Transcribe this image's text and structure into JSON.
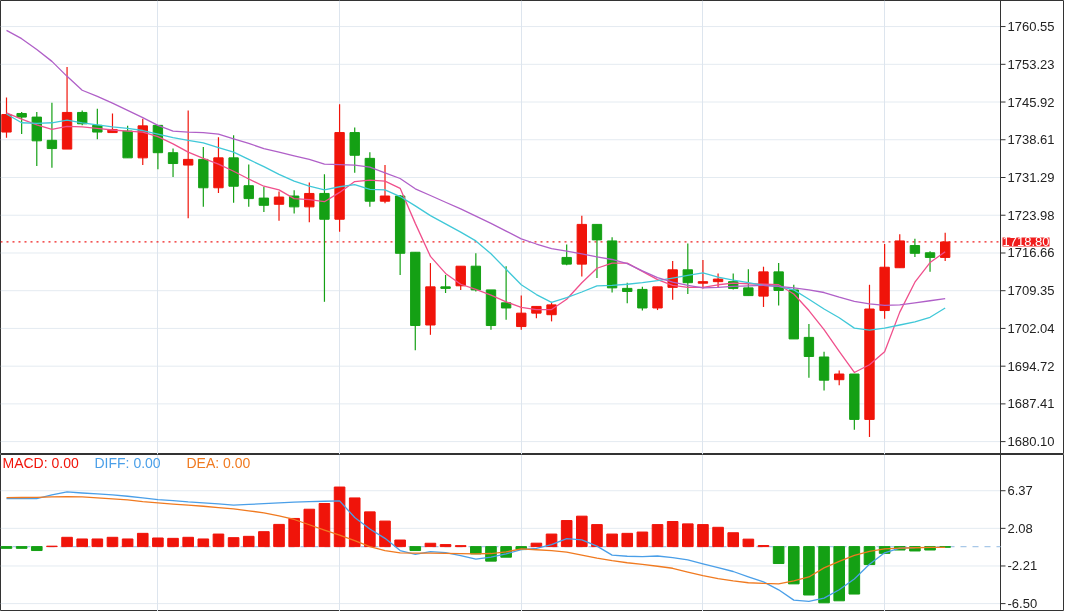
{
  "chart_data": [
    {
      "type": "candlestick",
      "categories": [
        null,
        null,
        null,
        null,
        null,
        null,
        null,
        null,
        null,
        null,
        null,
        null,
        null,
        null,
        null,
        null,
        null,
        null,
        null,
        null,
        null,
        null,
        null,
        null,
        null,
        null,
        null,
        null,
        null,
        null,
        null,
        null,
        null,
        null,
        null,
        null,
        null,
        null,
        null,
        null,
        null,
        null,
        null,
        null,
        null,
        null,
        null,
        null,
        null,
        null,
        null,
        null,
        null,
        null,
        null,
        null,
        null,
        null,
        null,
        null,
        null,
        null,
        null
      ],
      "ohlc": [
        [
          1740.1,
          1746.8,
          1739.0,
          1743.5
        ],
        [
          1743.7,
          1744.0,
          1739.7,
          1743.0
        ],
        [
          1743.0,
          1744.0,
          1733.5,
          1738.4
        ],
        [
          1738.5,
          1745.8,
          1733.2,
          1736.9
        ],
        [
          1736.8,
          1752.7,
          1736.8,
          1743.9
        ],
        [
          1743.9,
          1744.3,
          1741.4,
          1741.7
        ],
        [
          1741.4,
          1744.6,
          1738.7,
          1740.1
        ],
        [
          1740.0,
          1743.7,
          1740.0,
          1740.6
        ],
        [
          1740.3,
          1741.3,
          1735.1,
          1735.1
        ],
        [
          1735.1,
          1742.7,
          1733.7,
          1741.3
        ],
        [
          1741.4,
          1741.4,
          1732.9,
          1736.1
        ],
        [
          1736.1,
          1736.9,
          1731.4,
          1734.0
        ],
        [
          1733.7,
          1744.3,
          1723.4,
          1734.8
        ],
        [
          1734.8,
          1737.2,
          1725.6,
          1729.3
        ],
        [
          1729.3,
          1739.1,
          1728.3,
          1735.1
        ],
        [
          1735.1,
          1739.5,
          1726.4,
          1729.6
        ],
        [
          1729.7,
          1733.8,
          1725.6,
          1727.2
        ],
        [
          1727.3,
          1729.5,
          1724.6,
          1725.9
        ],
        [
          1726.1,
          1728.6,
          1722.9,
          1727.5
        ],
        [
          1727.7,
          1728.8,
          1724.3,
          1725.6
        ],
        [
          1725.6,
          1730.3,
          1722.6,
          1728.2
        ],
        [
          1728.2,
          1731.9,
          1707.2,
          1723.2
        ],
        [
          1723.2,
          1745.5,
          1720.8,
          1740.0
        ],
        [
          1740.0,
          1741.0,
          1732.2,
          1735.6
        ],
        [
          1735.0,
          1736.2,
          1725.6,
          1726.7
        ],
        [
          1726.7,
          1733.7,
          1726.3,
          1727.7
        ],
        [
          1727.7,
          1727.9,
          1712.4,
          1716.6
        ],
        [
          1716.8,
          1716.8,
          1697.8,
          1702.6
        ],
        [
          1702.7,
          1714.7,
          1700.8,
          1710.1
        ],
        [
          1710.1,
          1712.4,
          1708.9,
          1709.8
        ],
        [
          1710.3,
          1714.1,
          1709.5,
          1714.1
        ],
        [
          1714.1,
          1716.6,
          1709.2,
          1709.5
        ],
        [
          1709.5,
          1709.5,
          1701.8,
          1702.6
        ],
        [
          1707.0,
          1714.1,
          1703.7,
          1706.0
        ],
        [
          1702.4,
          1708.4,
          1701.8,
          1705.0
        ],
        [
          1705.0,
          1706.3,
          1704.0,
          1706.3
        ],
        [
          1704.7,
          1707.2,
          1703.4,
          1706.6
        ],
        [
          1715.8,
          1718.3,
          1714.3,
          1714.5
        ],
        [
          1714.5,
          1723.9,
          1712.1,
          1722.2
        ],
        [
          1722.2,
          1722.2,
          1711.8,
          1719.2
        ],
        [
          1719.0,
          1719.7,
          1709.0,
          1709.9
        ],
        [
          1709.8,
          1710.9,
          1706.9,
          1709.2
        ],
        [
          1709.6,
          1710.1,
          1705.5,
          1706.0
        ],
        [
          1706.0,
          1710.1,
          1705.6,
          1710.1
        ],
        [
          1710.0,
          1715.1,
          1707.6,
          1713.4
        ],
        [
          1713.4,
          1718.5,
          1708.7,
          1710.9
        ],
        [
          1710.8,
          1715.3,
          1709.8,
          1711.1
        ],
        [
          1711.1,
          1712.7,
          1710.0,
          1711.6
        ],
        [
          1711.1,
          1712.7,
          1709.6,
          1709.8
        ],
        [
          1709.9,
          1713.5,
          1708.4,
          1708.4
        ],
        [
          1708.3,
          1714.0,
          1706.2,
          1713.0
        ],
        [
          1713.0,
          1714.7,
          1706.5,
          1709.4
        ],
        [
          1709.5,
          1710.5,
          1700.0,
          1700.0
        ],
        [
          1700.3,
          1702.9,
          1692.5,
          1696.6
        ],
        [
          1696.5,
          1697.5,
          1690.0,
          1692.0
        ],
        [
          1692.1,
          1693.9,
          1691.0,
          1693.2
        ],
        [
          1693.2,
          1693.2,
          1682.4,
          1684.4
        ],
        [
          1684.4,
          1710.5,
          1681.0,
          1705.8
        ],
        [
          1705.5,
          1718.4,
          1703.9,
          1713.9
        ],
        [
          1713.8,
          1720.3,
          1713.8,
          1719.0
        ],
        [
          1718.1,
          1719.4,
          1715.9,
          1716.6
        ],
        [
          1716.7,
          1717.0,
          1713.0,
          1715.8
        ],
        [
          1715.8,
          1720.6,
          1715.1,
          1718.8
        ]
      ],
      "series": [
        {
          "type": "line",
          "color": "#f0508c",
          "values": [
            1743.8,
            1742.6,
            1741.5,
            1740.6,
            1741.2,
            1741.1,
            1740.8,
            1740.5,
            1740.3,
            1740.1,
            1739.2,
            1737.8,
            1736.2,
            1735.0,
            1733.9,
            1732.5,
            1731.0,
            1729.6,
            1728.9,
            1727.2,
            1727.0,
            1726.6,
            1728.4,
            1730.5,
            1730.8,
            1730.6,
            1729.2,
            1722.4,
            1716.0,
            1712.7,
            1710.6,
            1709.6,
            1708.5,
            1707.2,
            1706.1,
            1705.7,
            1705.7,
            1707.7,
            1710.9,
            1713.7,
            1714.7,
            1714.7,
            1713.1,
            1711.5,
            1710.4,
            1710.0,
            1710.0,
            1710.5,
            1710.8,
            1710.7,
            1710.6,
            1710.5,
            1708.7,
            1705.5,
            1701.8,
            1697.6,
            1693.5,
            1695.0,
            1697.5,
            1705.2,
            1711.0,
            1714.8,
            1716.9
          ]
        },
        {
          "type": "line",
          "color": "#40c8d8",
          "values": [
            1743.6,
            1741.9,
            1741.8,
            1741.9,
            1742.4,
            1741.9,
            1741.5,
            1741.1,
            1740.8,
            1740.4,
            1739.7,
            1739.0,
            1738.5,
            1738.0,
            1737.1,
            1736.2,
            1734.8,
            1733.4,
            1731.9,
            1730.6,
            1729.6,
            1728.9,
            1729.5,
            1729.9,
            1729.0,
            1728.9,
            1727.6,
            1725.8,
            1723.9,
            1722.3,
            1720.7,
            1719.0,
            1716.5,
            1713.5,
            1710.5,
            1708.6,
            1707.1,
            1708.0,
            1709.1,
            1710.3,
            1710.4,
            1710.6,
            1710.9,
            1711.3,
            1711.8,
            1712.3,
            1712.8,
            1712.0,
            1711.4,
            1710.9,
            1710.4,
            1710.2,
            1709.5,
            1707.7,
            1705.8,
            1704.1,
            1702.1,
            1701.7,
            1702.1,
            1702.7,
            1703.3,
            1704.2,
            1706.0
          ]
        },
        {
          "type": "line",
          "color": "#b060c8",
          "values": [
            1759.8,
            1758.2,
            1756.1,
            1753.8,
            1750.9,
            1748.2,
            1747.0,
            1745.7,
            1744.3,
            1742.9,
            1741.4,
            1740.3,
            1740.1,
            1740.0,
            1739.7,
            1738.8,
            1737.9,
            1736.9,
            1736.2,
            1735.5,
            1734.8,
            1733.9,
            1733.8,
            1733.7,
            1733.3,
            1732.2,
            1731.1,
            1729.1,
            1727.8,
            1726.5,
            1725.2,
            1723.8,
            1722.4,
            1720.9,
            1719.4,
            1718.4,
            1717.5,
            1717.0,
            1716.5,
            1715.9,
            1715.4,
            1714.6,
            1713.2,
            1711.9,
            1711.0,
            1710.4,
            1709.9,
            1710.0,
            1710.2,
            1710.3,
            1710.4,
            1710.2,
            1709.9,
            1709.5,
            1709.0,
            1708.1,
            1707.3,
            1706.8,
            1706.5,
            1706.6,
            1707.0,
            1707.4,
            1707.8
          ]
        }
      ],
      "ylim": [
        1677.6,
        1765.6
      ],
      "yticks": [
        1760.55,
        1753.23,
        1745.92,
        1738.61,
        1731.29,
        1723.98,
        1716.66,
        1709.35,
        1702.04,
        1694.72,
        1687.41,
        {
          "value": 1680.1,
          "label": "1680.10"
        }
      ],
      "ref_lines": [
        {
          "axis": "y",
          "value": 1718.8,
          "label": "1718.80",
          "color": "#f01e1e",
          "line_style": "dotted"
        }
      ],
      "grid": true,
      "tick_labels": "y"
    },
    {
      "type": "bar",
      "categories": [
        null,
        null,
        null,
        null,
        null,
        null,
        null,
        null,
        null,
        null,
        null,
        null,
        null,
        null,
        null,
        null,
        null,
        null,
        null,
        null,
        null,
        null,
        null,
        null,
        null,
        null,
        null,
        null,
        null,
        null,
        null,
        null,
        null,
        null,
        null,
        null,
        null,
        null,
        null,
        null,
        null,
        null,
        null,
        null,
        null,
        null,
        null,
        null,
        null,
        null,
        null,
        null,
        null,
        null,
        null,
        null,
        null,
        null,
        null,
        null,
        null,
        null,
        null
      ],
      "series": [
        {
          "name": "MACD: 0.00",
          "type": "bar",
          "color": "#f0140a",
          "values": [
            -0.2,
            -0.2,
            -0.45,
            0.05,
            1.06,
            0.87,
            0.87,
            1.06,
            0.87,
            1.51,
            0.98,
            0.94,
            1.06,
            0.87,
            1.43,
            1.02,
            1.17,
            1.7,
            2.53,
            3.21,
            4.26,
            4.91,
            6.79,
            5.55,
            3.96,
            2.91,
            0.75,
            -0.45,
            0.38,
            0.23,
            0.11,
            -0.83,
            -1.66,
            -1.21,
            -0.34,
            0.39,
            1.43,
            2.97,
            3.47,
            2.51,
            1.43,
            1.51,
            1.66,
            2.51,
            2.86,
            2.59,
            2.51,
            2.2,
            1.58,
            0.85,
            0.12,
            -1.93,
            -4.25,
            -5.52,
            -6.41,
            -6.18,
            -5.41,
            -2.05,
            -0.77,
            -0.39,
            -0.5,
            -0.39,
            -0.08
          ],
          "colors": [
            "#14a014",
            "#14a014",
            "#14a014",
            "#f0140a",
            "#f0140a",
            "#f0140a",
            "#f0140a",
            "#f0140a",
            "#f0140a",
            "#f0140a",
            "#f0140a",
            "#f0140a",
            "#f0140a",
            "#f0140a",
            "#f0140a",
            "#f0140a",
            "#f0140a",
            "#f0140a",
            "#f0140a",
            "#f0140a",
            "#f0140a",
            "#f0140a",
            "#f0140a",
            "#f0140a",
            "#f0140a",
            "#f0140a",
            "#f0140a",
            "#14a014",
            "#f0140a",
            "#f0140a",
            "#f0140a",
            "#14a014",
            "#14a014",
            "#14a014",
            "#14a014",
            "#f0140a",
            "#f0140a",
            "#f0140a",
            "#f0140a",
            "#f0140a",
            "#f0140a",
            "#f0140a",
            "#f0140a",
            "#f0140a",
            "#f0140a",
            "#f0140a",
            "#f0140a",
            "#f0140a",
            "#f0140a",
            "#f0140a",
            "#f0140a",
            "#14a014",
            "#14a014",
            "#14a014",
            "#14a014",
            "#14a014",
            "#14a014",
            "#14a014",
            "#14a014",
            "#14a014",
            "#14a014",
            "#14a014",
            "#14a014"
          ]
        },
        {
          "name": "DIFF: 0.00",
          "type": "line",
          "color": "#4a9fe8",
          "values": [
            5.47,
            5.47,
            5.47,
            5.89,
            6.23,
            6.11,
            6.0,
            5.89,
            5.74,
            5.55,
            5.36,
            5.25,
            5.09,
            4.98,
            4.87,
            4.72,
            4.81,
            4.89,
            4.98,
            5.06,
            5.13,
            5.17,
            5.21,
            3.32,
            2.0,
            0.94,
            -0.45,
            -0.88,
            -0.57,
            -0.68,
            -1.02,
            -1.43,
            -1.21,
            -0.83,
            -0.34,
            -0.21,
            0.22,
            0.9,
            0.77,
            0.06,
            -0.97,
            -1.1,
            -1.14,
            -1.07,
            -1.25,
            -1.52,
            -1.98,
            -2.41,
            -2.84,
            -3.45,
            -4.02,
            -4.93,
            -6.1,
            -6.24,
            -5.87,
            -4.92,
            -3.69,
            -2.01,
            -0.71,
            -0.17,
            -0.12,
            null,
            null
          ]
        },
        {
          "name": "DEA: 0.00",
          "type": "line",
          "color": "#f07a20",
          "values": [
            5.58,
            5.6,
            5.62,
            5.66,
            5.7,
            5.66,
            5.55,
            5.45,
            5.32,
            5.13,
            4.98,
            4.85,
            4.72,
            4.6,
            4.45,
            4.3,
            4.08,
            3.85,
            3.51,
            3.09,
            2.49,
            1.89,
            1.32,
            0.68,
            0.0,
            -0.45,
            -0.72,
            -0.75,
            -0.75,
            -0.77,
            -0.81,
            -0.83,
            -0.79,
            -0.6,
            -0.26,
            -0.36,
            -0.47,
            -0.63,
            -0.97,
            -1.32,
            -1.61,
            -1.84,
            -2.03,
            -2.24,
            -2.47,
            -2.9,
            -3.32,
            -3.64,
            -3.92,
            -4.12,
            -4.2,
            -4.24,
            -3.9,
            -3.46,
            -2.43,
            -1.68,
            -1.0,
            -0.54,
            -0.27,
            -0.17,
            -0.13,
            -0.1,
            -0.08
          ]
        }
      ],
      "ylim": [
        -7.4,
        10.5
      ],
      "yticks": [
        6.37,
        2.08,
        -2.21,
        {
          "value": -6.5,
          "label": "-6.50"
        }
      ],
      "ref_lines": [
        {
          "axis": "y",
          "value": 0,
          "color": "#a8c8e8",
          "line_style": "dashed"
        }
      ],
      "legend": "top left",
      "grid": true,
      "tick_labels": "y"
    }
  ]
}
